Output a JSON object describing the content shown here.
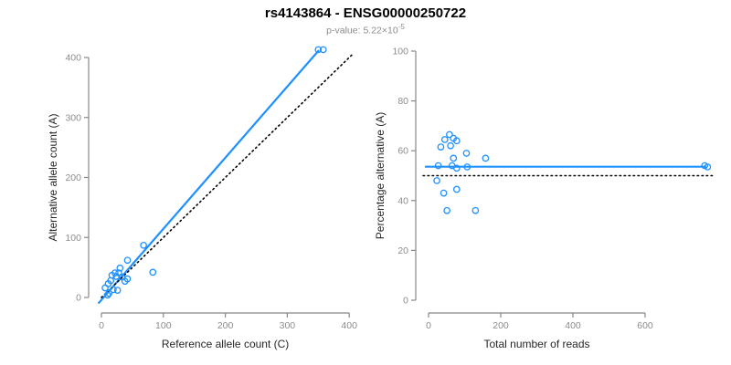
{
  "header": {
    "title": "rs4143864 - ENSG00000250722",
    "subtitle_main": "p-value: 5.22×10",
    "subtitle_exponent": "-5"
  },
  "colors": {
    "accent_blue": "#1E90FF",
    "dotted_black": "#000000",
    "axis_gray": "#888888",
    "tick_label_gray": "#8c8c8c",
    "axis_label_dark": "#262626"
  },
  "chart_data": [
    {
      "type": "scatter",
      "name": "allele-counts-scatter",
      "xlabel": "Reference allele count (C)",
      "ylabel": "Alternative allele count (A)",
      "xticks": [
        0,
        100,
        200,
        300,
        400
      ],
      "yticks": [
        0,
        100,
        200,
        300,
        400
      ],
      "xlim": [
        0,
        400
      ],
      "ylim": [
        0,
        400
      ],
      "grid": false,
      "points": [
        [
          350,
          413
        ],
        [
          358,
          413
        ],
        [
          68,
          87
        ],
        [
          83,
          42
        ],
        [
          42,
          62
        ],
        [
          30,
          49
        ],
        [
          22,
          41
        ],
        [
          28,
          41
        ],
        [
          17,
          37
        ],
        [
          24,
          35
        ],
        [
          33,
          34
        ],
        [
          42,
          31
        ],
        [
          15,
          28
        ],
        [
          11,
          23
        ],
        [
          38,
          27
        ],
        [
          6,
          16
        ],
        [
          19,
          13
        ],
        [
          26,
          12
        ],
        [
          12,
          7
        ],
        [
          10,
          4
        ]
      ],
      "lines": [
        {
          "name": "fit-line",
          "style": "solid",
          "color": "#1E90FF",
          "from": [
            -5,
            -10
          ],
          "to": [
            351,
            412
          ]
        },
        {
          "name": "identity-line",
          "style": "dotted",
          "color": "#000000",
          "from": [
            0,
            0
          ],
          "to": [
            405,
            405
          ]
        }
      ]
    },
    {
      "type": "scatter",
      "name": "percentage-vs-reads-scatter",
      "xlabel": "Total number of reads",
      "ylabel": "Percentage alternative (A)",
      "xticks": [
        0,
        200,
        400,
        600
      ],
      "yticks": [
        0,
        20,
        40,
        60,
        80,
        100
      ],
      "xlim": [
        0,
        780
      ],
      "ylim": [
        0,
        100
      ],
      "grid": false,
      "points": [
        [
          58,
          66.5
        ],
        [
          45,
          64.5
        ],
        [
          69,
          65
        ],
        [
          78,
          64
        ],
        [
          61,
          62
        ],
        [
          34,
          61.5
        ],
        [
          105,
          59
        ],
        [
          158,
          57
        ],
        [
          69,
          57
        ],
        [
          27,
          54
        ],
        [
          65,
          54
        ],
        [
          78,
          53
        ],
        [
          107,
          53.5
        ],
        [
          23,
          48
        ],
        [
          78,
          44.5
        ],
        [
          42,
          43
        ],
        [
          51,
          36
        ],
        [
          130,
          36
        ],
        [
          765,
          54
        ],
        [
          773,
          53.5
        ]
      ],
      "lines": [
        {
          "name": "mean-line",
          "style": "solid",
          "color": "#1E90FF",
          "from": [
            -10,
            53.6
          ],
          "to": [
            770,
            53.6
          ]
        },
        {
          "name": "expected-line",
          "style": "dotted",
          "color": "#000000",
          "from": [
            -15,
            50
          ],
          "to": [
            793,
            50
          ]
        }
      ]
    }
  ]
}
